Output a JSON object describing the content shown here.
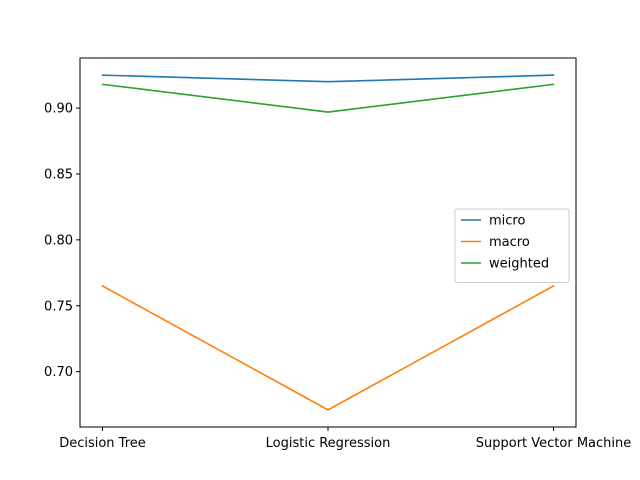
{
  "chart_data": {
    "type": "line",
    "title": "",
    "xlabel": "",
    "ylabel": "",
    "categories": [
      "Decision Tree",
      "Logistic Regression",
      "Support Vector Machine"
    ],
    "series": [
      {
        "name": "micro",
        "color": "#1f77b4",
        "values": [
          0.925,
          0.92,
          0.925
        ]
      },
      {
        "name": "macro",
        "color": "#ff7f0e",
        "values": [
          0.765,
          0.671,
          0.765
        ]
      },
      {
        "name": "weighted",
        "color": "#2ca02c",
        "values": [
          0.918,
          0.897,
          0.918
        ]
      }
    ],
    "ylim": [
      0.658,
      0.938
    ],
    "yticks": [
      0.7,
      0.75,
      0.8,
      0.85,
      0.9
    ],
    "ytick_labels": [
      "0.70",
      "0.75",
      "0.80",
      "0.85",
      "0.90"
    ],
    "grid": false,
    "legend_position": "center-right"
  }
}
